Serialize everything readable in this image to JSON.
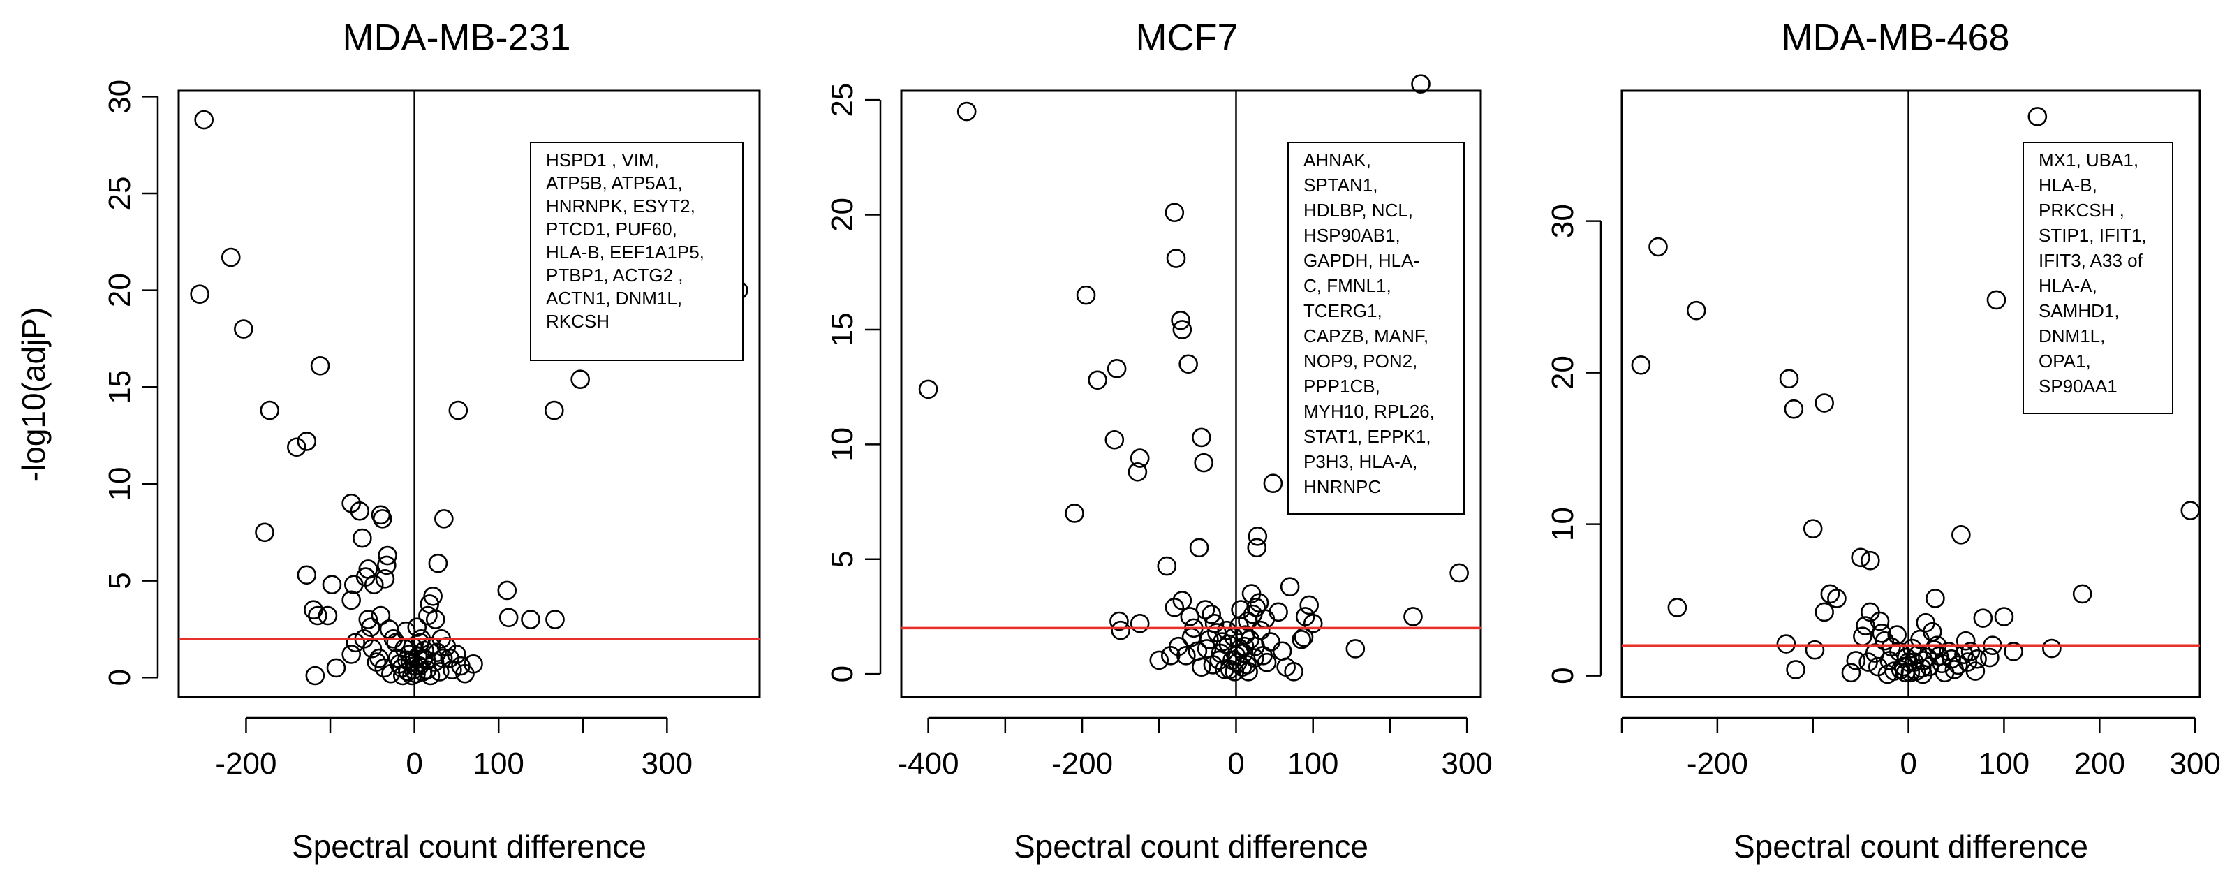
{
  "chart_data": [
    {
      "type": "scatter",
      "title": "MDA-MB-231",
      "xlabel": "Spectral count difference",
      "ylabel": "-log10(adjP)",
      "xlim": [
        -280,
        410
      ],
      "ylim": [
        -1,
        30.3
      ],
      "xticks": [
        -200,
        -100,
        0,
        100,
        200,
        300
      ],
      "xtick_labels": [
        "-200",
        "",
        "0",
        "100",
        "",
        "300"
      ],
      "yticks": [
        0,
        5,
        10,
        15,
        20,
        25,
        30
      ],
      "ytick_labels": [
        "0",
        "5",
        "10",
        "15",
        "20",
        "25",
        "30"
      ],
      "threshold_y": 2,
      "legend_lines": [
        "HSPD1 , VIM,",
        "ATP5B, ATP5A1,",
        "HNRNPK, ESYT2,",
        "PTCD1, PUF60,",
        "HLA-B, EEF1A1P5,",
        "PTBP1, ACTG2 ,",
        "ACTN1, DNM1L,",
        "RKCSH"
      ],
      "points": [
        [
          -250,
          28.8
        ],
        [
          -255,
          19.8
        ],
        [
          -218,
          21.7
        ],
        [
          -203,
          18.0
        ],
        [
          -172,
          13.8
        ],
        [
          -178,
          7.5
        ],
        [
          -140,
          11.9
        ],
        [
          -128,
          12.2
        ],
        [
          -112,
          16.1
        ],
        [
          -128,
          5.3
        ],
        [
          -120,
          3.5
        ],
        [
          -115,
          3.2
        ],
        [
          -103,
          3.2
        ],
        [
          -98,
          4.8
        ],
        [
          -118,
          0.1
        ],
        [
          -93,
          0.5
        ],
        [
          -75,
          9.0
        ],
        [
          -75,
          4.0
        ],
        [
          -72,
          4.8
        ],
        [
          -65,
          8.6
        ],
        [
          -62,
          7.2
        ],
        [
          -55,
          5.6
        ],
        [
          -58,
          5.2
        ],
        [
          -48,
          4.8
        ],
        [
          -40,
          8.4
        ],
        [
          -38,
          8.2
        ],
        [
          -32,
          6.3
        ],
        [
          -33,
          5.8
        ],
        [
          -35,
          5.1
        ],
        [
          -40,
          3.2
        ],
        [
          -55,
          3.0
        ],
        [
          -60,
          2.0
        ],
        [
          -70,
          1.8
        ],
        [
          -75,
          1.2
        ],
        [
          -50,
          1.5
        ],
        [
          -30,
          2.5
        ],
        [
          -25,
          2.0
        ],
        [
          -45,
          0.8
        ],
        [
          -20,
          1.0
        ],
        [
          -15,
          0.5
        ],
        [
          -12,
          1.5
        ],
        [
          -8,
          0.3
        ],
        [
          -5,
          0.8
        ],
        [
          -3,
          0.1
        ],
        [
          -2,
          1.6
        ],
        [
          -1,
          0.4
        ],
        [
          2,
          0.2
        ],
        [
          4,
          1.1
        ],
        [
          6,
          0.6
        ],
        [
          8,
          2.0
        ],
        [
          10,
          0.3
        ],
        [
          12,
          1.4
        ],
        [
          14,
          0.9
        ],
        [
          16,
          3.2
        ],
        [
          18,
          3.8
        ],
        [
          22,
          4.2
        ],
        [
          25,
          3.0
        ],
        [
          28,
          5.9
        ],
        [
          35,
          8.2
        ],
        [
          32,
          2.0
        ],
        [
          38,
          1.6
        ],
        [
          42,
          1.0
        ],
        [
          45,
          0.4
        ],
        [
          52,
          13.8
        ],
        [
          50,
          1.2
        ],
        [
          55,
          0.6
        ],
        [
          60,
          0.2
        ],
        [
          70,
          0.7
        ],
        [
          110,
          4.5
        ],
        [
          112,
          3.1
        ],
        [
          138,
          3.0
        ],
        [
          166,
          13.8
        ],
        [
          167,
          3.0
        ],
        [
          197,
          15.4
        ],
        [
          385,
          20.0
        ],
        [
          -42,
          1.0
        ],
        [
          -36,
          0.5
        ],
        [
          -28,
          0.2
        ],
        [
          -22,
          1.8
        ],
        [
          -18,
          0.7
        ],
        [
          -10,
          2.4
        ],
        [
          -6,
          1.2
        ],
        [
          0,
          0.6
        ],
        [
          3,
          2.6
        ],
        [
          7,
          1.8
        ],
        [
          11,
          1.0
        ],
        [
          15,
          0.4
        ],
        [
          20,
          1.6
        ],
        [
          24,
          0.8
        ],
        [
          27,
          1.3
        ],
        [
          30,
          0.3
        ],
        [
          34,
          1.0
        ],
        [
          -14,
          0.1
        ],
        [
          -9,
          0.9
        ],
        [
          19,
          0.1
        ],
        [
          -52,
          2.6
        ]
      ]
    },
    {
      "type": "scatter",
      "title": "MCF7",
      "xlabel": "Spectral count difference",
      "ylabel": "",
      "xlim": [
        -435,
        318
      ],
      "ylim": [
        -1,
        25.4
      ],
      "xticks": [
        -400,
        -300,
        -200,
        -100,
        0,
        100,
        200,
        300
      ],
      "xtick_labels": [
        "-400",
        "",
        "-200",
        "",
        "0",
        "100",
        "",
        "300"
      ],
      "yticks": [
        0,
        5,
        10,
        15,
        20,
        25
      ],
      "ytick_labels": [
        "0",
        "5",
        "10",
        "15",
        "20",
        "25"
      ],
      "threshold_y": 2,
      "legend_lines": [
        "AHNAK,",
        "SPTAN1,",
        "HDLBP, NCL,",
        "HSP90AB1,",
        "GAPDH, HLA-",
        "C, FMNL1,",
        "TCERG1,",
        "CAPZB, MANF,",
        "NOP9, PON2,",
        "PPP1CB,",
        "MYH10, RPL26,",
        "STAT1, EPPK1,",
        "P3H3, HLA-A,",
        "HNRNPC"
      ],
      "points": [
        [
          -400,
          12.4
        ],
        [
          -350,
          24.5
        ],
        [
          -195,
          16.5
        ],
        [
          -180,
          12.8
        ],
        [
          -155,
          13.3
        ],
        [
          -158,
          10.2
        ],
        [
          -125,
          9.4
        ],
        [
          -128,
          8.8
        ],
        [
          -210,
          7.0
        ],
        [
          -80,
          20.1
        ],
        [
          -78,
          18.1
        ],
        [
          -72,
          15.4
        ],
        [
          -70,
          15.0
        ],
        [
          -62,
          13.5
        ],
        [
          -45,
          10.3
        ],
        [
          -42,
          9.2
        ],
        [
          -48,
          5.5
        ],
        [
          -90,
          4.7
        ],
        [
          -80,
          2.9
        ],
        [
          -70,
          3.2
        ],
        [
          -60,
          2.5
        ],
        [
          -150,
          1.9
        ],
        [
          -152,
          2.3
        ],
        [
          -125,
          2.2
        ],
        [
          -100,
          0.6
        ],
        [
          -85,
          0.8
        ],
        [
          -75,
          1.2
        ],
        [
          -55,
          2.0
        ],
        [
          -50,
          1.0
        ],
        [
          -40,
          2.8
        ],
        [
          -35,
          1.5
        ],
        [
          -30,
          0.4
        ],
        [
          -25,
          1.8
        ],
        [
          -20,
          0.9
        ],
        [
          -15,
          0.2
        ],
        [
          -10,
          1.3
        ],
        [
          -5,
          0.6
        ],
        [
          -2,
          0.1
        ],
        [
          2,
          0.5
        ],
        [
          5,
          1.1
        ],
        [
          8,
          0.3
        ],
        [
          12,
          1.7
        ],
        [
          15,
          2.3
        ],
        [
          20,
          3.5
        ],
        [
          22,
          2.6
        ],
        [
          25,
          1.2
        ],
        [
          28,
          6.0
        ],
        [
          27,
          5.5
        ],
        [
          30,
          3.1
        ],
        [
          35,
          0.8
        ],
        [
          48,
          8.3
        ],
        [
          55,
          2.7
        ],
        [
          60,
          1.0
        ],
        [
          70,
          3.8
        ],
        [
          85,
          1.5
        ],
        [
          90,
          2.5
        ],
        [
          95,
          3.0
        ],
        [
          100,
          2.2
        ],
        [
          88,
          1.6
        ],
        [
          155,
          1.1
        ],
        [
          230,
          2.5
        ],
        [
          240,
          25.7
        ],
        [
          290,
          4.4
        ],
        [
          -65,
          0.8
        ],
        [
          -45,
          0.3
        ],
        [
          -38,
          1.1
        ],
        [
          -28,
          2.2
        ],
        [
          -22,
          0.6
        ],
        [
          -12,
          1.9
        ],
        [
          -8,
          0.2
        ],
        [
          0,
          0.8
        ],
        [
          4,
          2.1
        ],
        [
          10,
          0.9
        ],
        [
          14,
          0.4
        ],
        [
          18,
          1.5
        ],
        [
          24,
          0.7
        ],
        [
          32,
          1.9
        ],
        [
          40,
          0.5
        ],
        [
          45,
          1.4
        ],
        [
          65,
          0.3
        ],
        [
          75,
          0.1
        ],
        [
          -32,
          2.6
        ],
        [
          -18,
          1.4
        ],
        [
          6,
          2.8
        ],
        [
          16,
          0.1
        ],
        [
          26,
          2.9
        ],
        [
          38,
          2.4
        ],
        [
          -58,
          1.6
        ],
        [
          -3,
          1.6
        ],
        [
          11,
          1.2
        ]
      ]
    },
    {
      "type": "scatter",
      "title": "MDA-MB-468",
      "xlabel": "Spectral count difference",
      "ylabel": "",
      "xlim": [
        -300,
        305
      ],
      "ylim": [
        -1.4,
        38.6
      ],
      "xticks": [
        -300,
        -200,
        -100,
        0,
        100,
        200,
        300
      ],
      "xtick_labels": [
        "",
        "-200",
        "",
        "0",
        "100",
        "200",
        "300"
      ],
      "yticks": [
        0,
        10,
        20,
        30
      ],
      "ytick_labels": [
        "0",
        "10",
        "20",
        "30"
      ],
      "threshold_y": 2,
      "legend_lines": [
        "MX1,  UBA1,",
        "HLA-B,",
        "PRKCSH ,",
        "STIP1, IFIT1,",
        "IFIT3, A33 of",
        "HLA-A,",
        "SAMHD1,",
        "DNM1L,",
        "OPA1,",
        "SP90AA1"
      ],
      "points": [
        [
          -280,
          20.5
        ],
        [
          -262,
          28.3
        ],
        [
          -222,
          24.1
        ],
        [
          -242,
          4.5
        ],
        [
          -125,
          19.6
        ],
        [
          -120,
          17.6
        ],
        [
          -100,
          9.7
        ],
        [
          -98,
          1.7
        ],
        [
          -88,
          18.0
        ],
        [
          -82,
          5.4
        ],
        [
          -88,
          4.2
        ],
        [
          -75,
          5.1
        ],
        [
          -50,
          7.8
        ],
        [
          -40,
          7.6
        ],
        [
          -40,
          4.2
        ],
        [
          -45,
          3.3
        ],
        [
          -30,
          3.6
        ],
        [
          -28,
          2.8
        ],
        [
          -128,
          2.1
        ],
        [
          -118,
          0.4
        ],
        [
          -60,
          0.2
        ],
        [
          -55,
          1.0
        ],
        [
          -48,
          2.6
        ],
        [
          -35,
          1.5
        ],
        [
          -25,
          2.3
        ],
        [
          -20,
          1.0
        ],
        [
          -15,
          0.3
        ],
        [
          -10,
          1.6
        ],
        [
          -5,
          0.6
        ],
        [
          -2,
          1.2
        ],
        [
          2,
          0.2
        ],
        [
          6,
          0.9
        ],
        [
          10,
          1.4
        ],
        [
          14,
          0.5
        ],
        [
          18,
          3.5
        ],
        [
          20,
          1.2
        ],
        [
          25,
          2.9
        ],
        [
          28,
          5.1
        ],
        [
          30,
          2.0
        ],
        [
          35,
          0.8
        ],
        [
          42,
          1.6
        ],
        [
          48,
          0.4
        ],
        [
          55,
          9.3
        ],
        [
          60,
          2.3
        ],
        [
          62,
          0.9
        ],
        [
          65,
          1.6
        ],
        [
          72,
          1.1
        ],
        [
          78,
          3.8
        ],
        [
          85,
          1.2
        ],
        [
          88,
          2.0
        ],
        [
          92,
          24.8
        ],
        [
          100,
          3.9
        ],
        [
          110,
          1.6
        ],
        [
          135,
          36.9
        ],
        [
          150,
          1.8
        ],
        [
          182,
          5.4
        ],
        [
          295,
          10.9
        ],
        [
          -32,
          0.6
        ],
        [
          -22,
          0.1
        ],
        [
          -12,
          2.7
        ],
        [
          -8,
          0.4
        ],
        [
          0,
          0.9
        ],
        [
          4,
          1.8
        ],
        [
          8,
          0.3
        ],
        [
          12,
          2.4
        ],
        [
          16,
          1.0
        ],
        [
          22,
          0.6
        ],
        [
          32,
          1.3
        ],
        [
          38,
          0.2
        ],
        [
          45,
          1.1
        ],
        [
          -18,
          1.9
        ],
        [
          -3,
          0.2
        ],
        [
          15,
          0.1
        ],
        [
          27,
          1.7
        ],
        [
          52,
          0.7
        ],
        [
          -42,
          0.9
        ],
        [
          70,
          0.3
        ],
        [
          58,
          1.4
        ]
      ]
    }
  ]
}
